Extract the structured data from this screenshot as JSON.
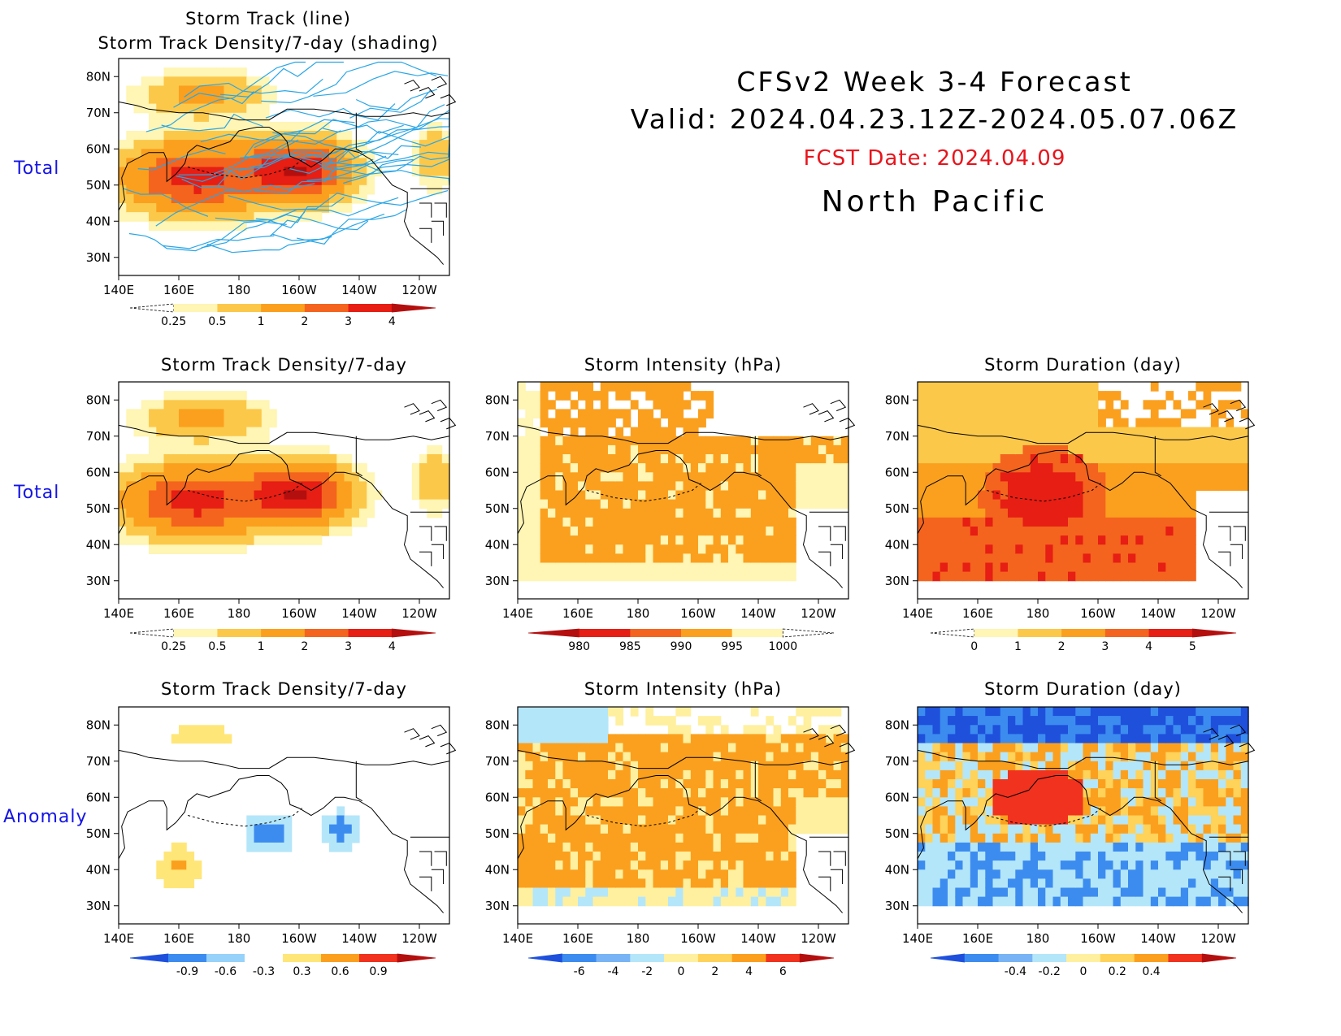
{
  "header": {
    "title_line1": "CFSv2  Week  3-4  Forecast",
    "title_line2": "Valid:  2024.04.23.12Z-2024.05.07.06Z",
    "fcst_date": "FCST Date: 2024.04.09",
    "region": "North  Pacific"
  },
  "row_labels": {
    "row1": "Total",
    "row2": "Total",
    "row3": "Anomaly"
  },
  "axes": {
    "lon_labels": [
      "140E",
      "160E",
      "180",
      "160W",
      "140W",
      "120W"
    ],
    "lat_labels": [
      "80N",
      "70N",
      "60N",
      "50N",
      "40N",
      "30N"
    ]
  },
  "panels": {
    "p1": {
      "title_line1": "Storm Track (line)",
      "title_line2": "Storm Track Density/7-day (shading)"
    },
    "p2": {
      "title": "Storm Track Density/7-day"
    },
    "p3": {
      "title": "Storm Intensity (hPa)"
    },
    "p4": {
      "title": "Storm Duration (day)"
    },
    "p5": {
      "title": "Storm Track Density/7-day"
    },
    "p6": {
      "title": "Storm Intensity (hPa)"
    },
    "p7": {
      "title": "Storm Duration (day)"
    }
  },
  "colorbars": {
    "density": {
      "labels": [
        "0.25",
        "0.5",
        "1",
        "2",
        "3",
        "4"
      ],
      "colors": [
        "#ffffff",
        "#fff5b4",
        "#fcc84a",
        "#fba01e",
        "#f4641e",
        "#e61e14",
        "#b40f0f"
      ]
    },
    "intensity": {
      "labels": [
        "980",
        "985",
        "990",
        "995",
        "1000"
      ],
      "colors": [
        "#b40f0f",
        "#e61e14",
        "#f4641e",
        "#fba01e",
        "#fff5b4",
        "#ffffff"
      ]
    },
    "duration": {
      "labels": [
        "0",
        "1",
        "2",
        "3",
        "4",
        "5"
      ],
      "colors": [
        "#ffffff",
        "#fff5b4",
        "#fcc84a",
        "#fba01e",
        "#f4641e",
        "#e61e14",
        "#b40f0f"
      ]
    },
    "density_anom": {
      "labels": [
        "-0.9",
        "-0.6",
        "-0.3",
        "0.3",
        "0.6",
        "0.9"
      ],
      "colors": [
        "#1e50dc",
        "#3c8cf0",
        "#96d2fa",
        "#ffffff",
        "#ffe678",
        "#fba01e",
        "#f0321e",
        "#b40f0f"
      ]
    },
    "intensity_anom": {
      "labels": [
        "-6",
        "-4",
        "-2",
        "0",
        "2",
        "4",
        "6"
      ],
      "colors": [
        "#1e50dc",
        "#3c8cf0",
        "#78b4f5",
        "#b4e6fa",
        "#fff0a0",
        "#ffd25a",
        "#fba01e",
        "#f0321e",
        "#b40f0f"
      ]
    },
    "duration_anom": {
      "labels": [
        "-0.4",
        "-0.2",
        "0",
        "0.2",
        "0.4"
      ],
      "colors": [
        "#1e50dc",
        "#3c8cf0",
        "#78b4f5",
        "#b4e6fa",
        "#fff0a0",
        "#ffd25a",
        "#fba01e",
        "#f0321e",
        "#b40f0f"
      ]
    }
  }
}
